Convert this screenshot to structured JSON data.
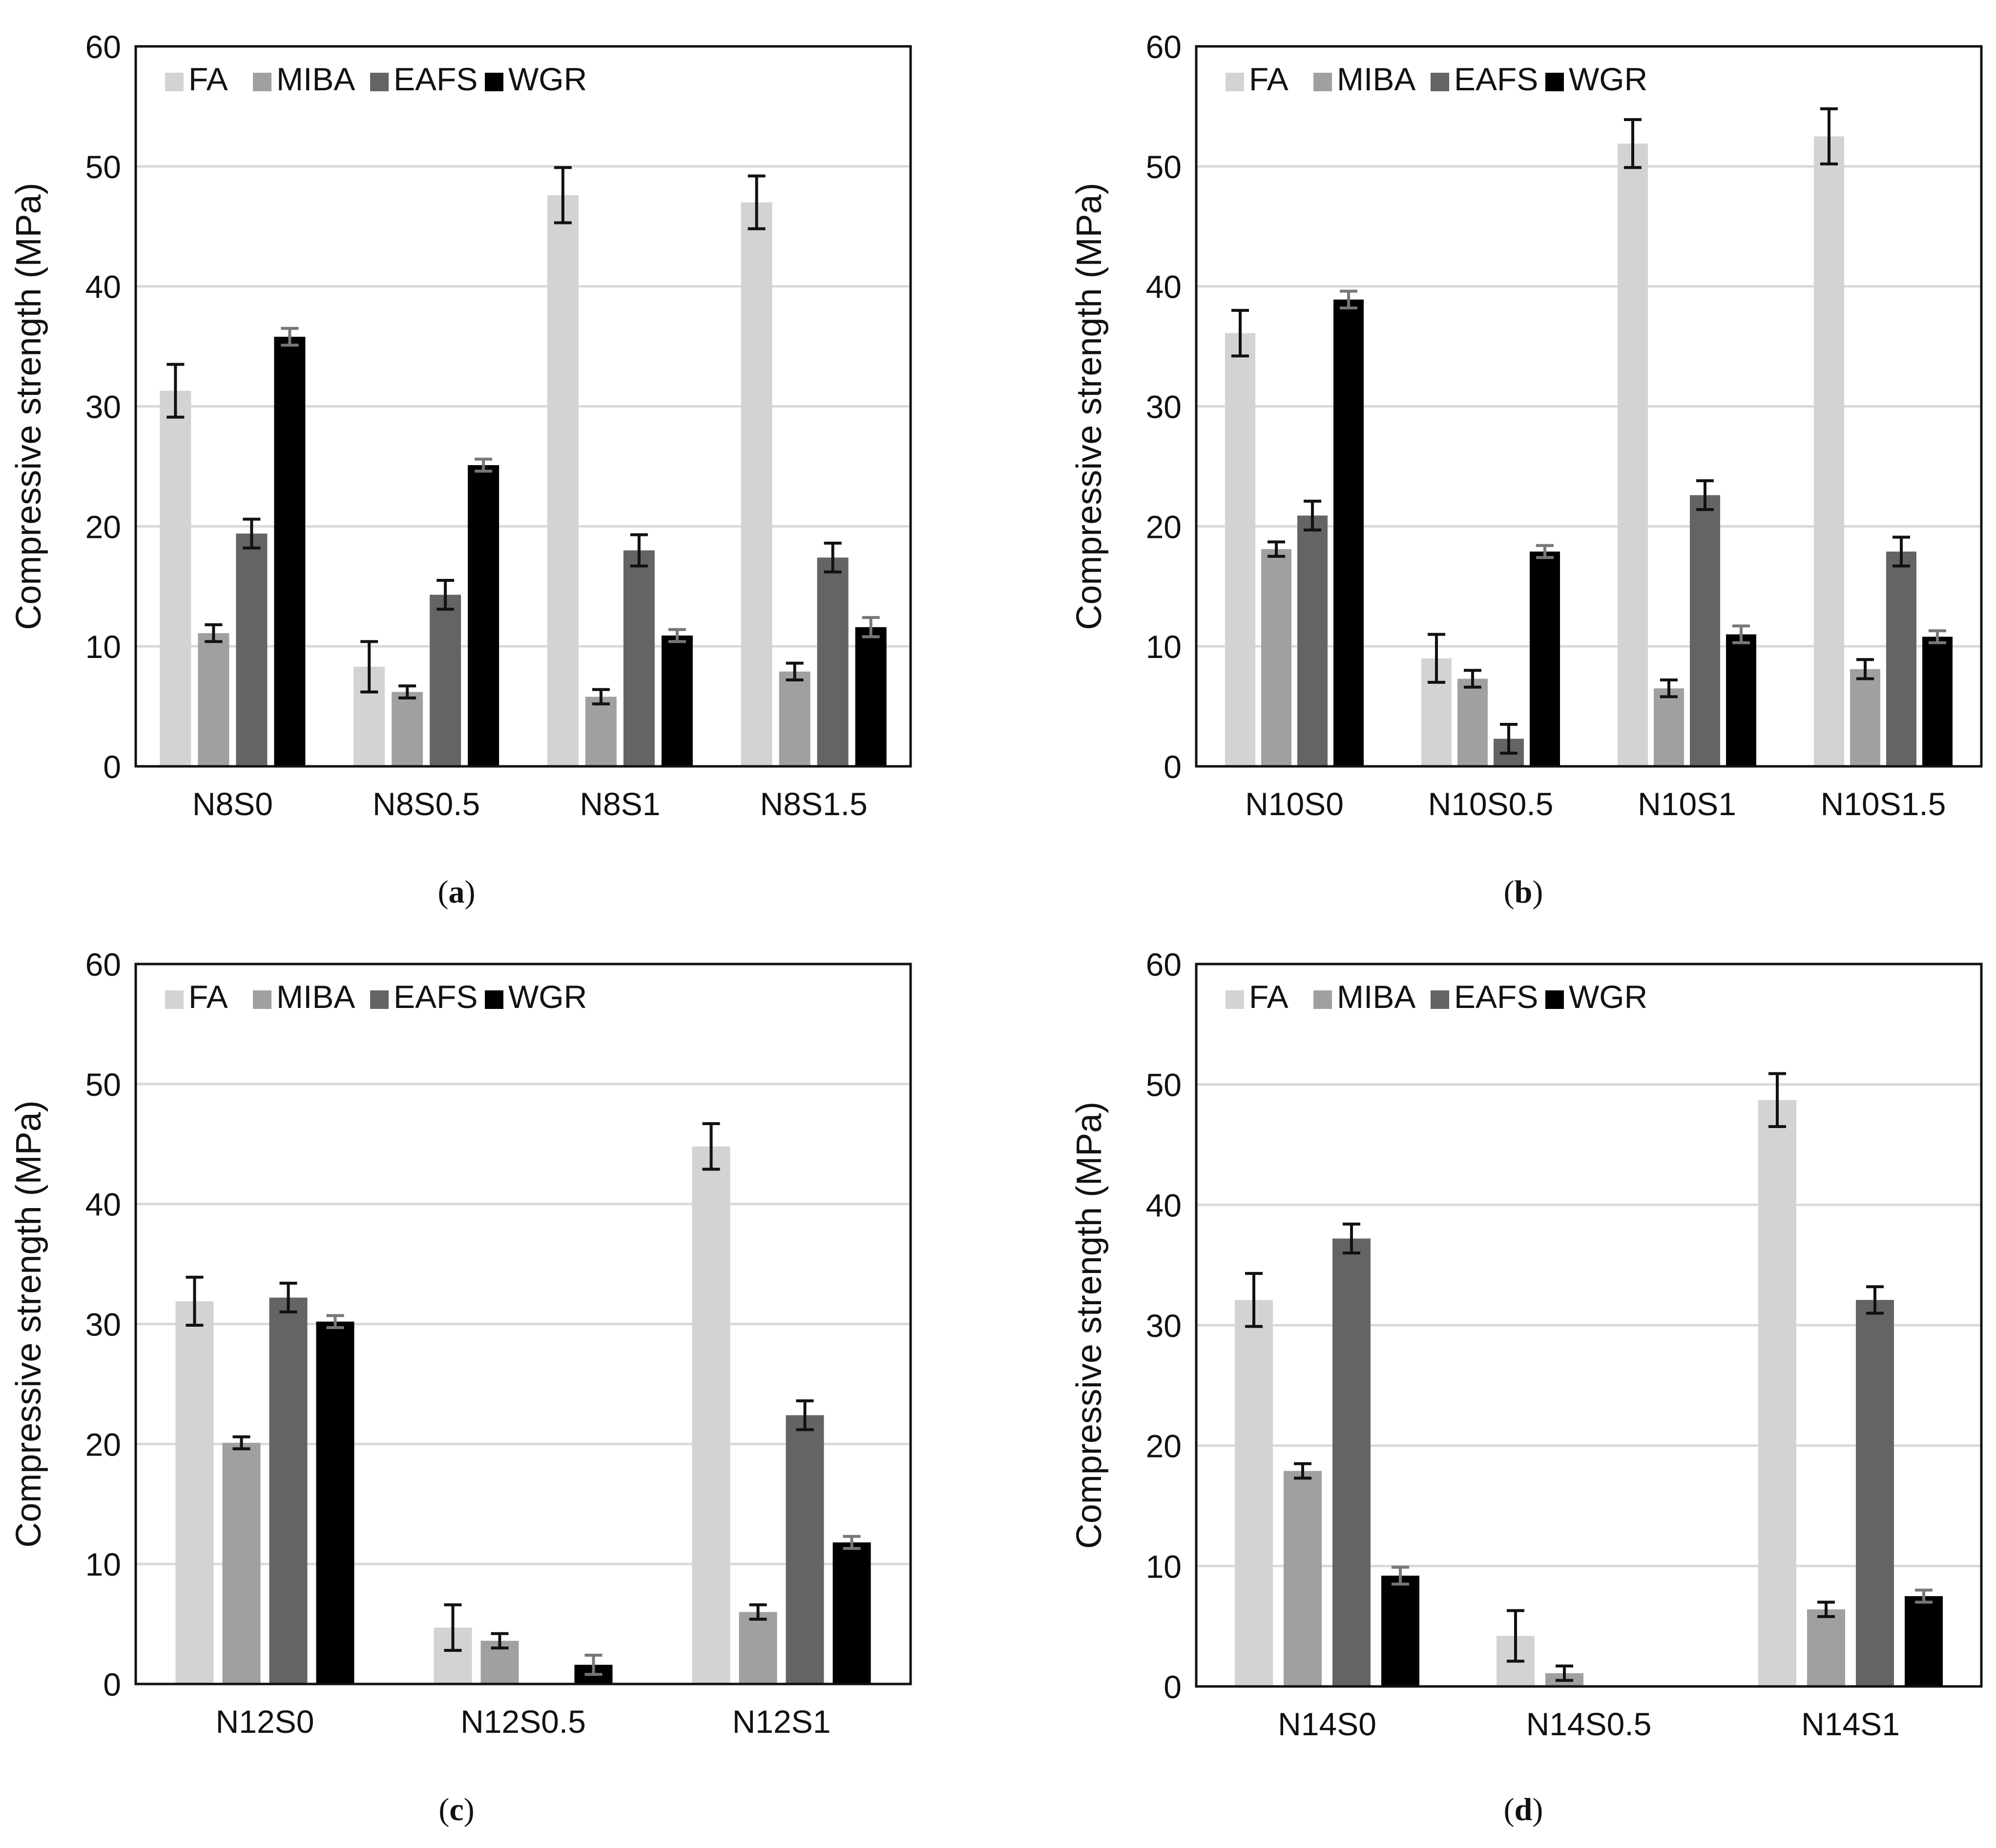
{
  "colors": {
    "FA": "#d3d3d3",
    "MIBA": "#a0a0a0",
    "EAFS": "#646464",
    "WGR": "#000000",
    "err_light": "#777777",
    "err_dark": "#111111",
    "grid": "#d9d9d9"
  },
  "chart_data": [
    {
      "type": "bar",
      "panel_label": "a",
      "panel_open": "(",
      "panel_close": ")",
      "ylabel": "Compressive strength (MPa)",
      "ylim": [
        0,
        60
      ],
      "yticks": [
        0,
        10,
        20,
        30,
        40,
        50,
        60
      ],
      "legend": [
        "FA",
        "MIBA",
        "EAFS",
        "WGR"
      ],
      "legend_position": "top-left",
      "categories": [
        "N8S0",
        "N8S0.5",
        "N8S1",
        "N8S1.5"
      ],
      "series": [
        {
          "name": "FA",
          "values": [
            31.3,
            8.3,
            47.6,
            47.0
          ],
          "errors": [
            2.2,
            2.1,
            2.3,
            2.2
          ]
        },
        {
          "name": "MIBA",
          "values": [
            11.1,
            6.2,
            5.8,
            7.9
          ],
          "errors": [
            0.7,
            0.5,
            0.6,
            0.7
          ]
        },
        {
          "name": "EAFS",
          "values": [
            19.4,
            14.3,
            18.0,
            17.4
          ],
          "errors": [
            1.2,
            1.2,
            1.3,
            1.2
          ]
        },
        {
          "name": "WGR",
          "values": [
            35.8,
            25.1,
            10.9,
            11.6
          ],
          "errors": [
            0.7,
            0.5,
            0.5,
            0.8
          ]
        }
      ]
    },
    {
      "type": "bar",
      "panel_label": "b",
      "panel_open": "(",
      "panel_close": ")",
      "ylabel": "Compressive strength (MPa)",
      "ylim": [
        0,
        60
      ],
      "yticks": [
        0,
        10,
        20,
        30,
        40,
        50,
        60
      ],
      "legend": [
        "FA",
        "MIBA",
        "EAFS",
        "WGR"
      ],
      "legend_position": "top-left",
      "categories": [
        "N10S0",
        "N10S0.5",
        "N10S1",
        "N10S1.5"
      ],
      "series": [
        {
          "name": "FA",
          "values": [
            36.1,
            9.0,
            51.9,
            52.5
          ],
          "errors": [
            1.9,
            2.0,
            2.0,
            2.3
          ]
        },
        {
          "name": "MIBA",
          "values": [
            18.1,
            7.3,
            6.5,
            8.1
          ],
          "errors": [
            0.6,
            0.7,
            0.7,
            0.8
          ]
        },
        {
          "name": "EAFS",
          "values": [
            20.9,
            2.3,
            22.6,
            17.9
          ],
          "errors": [
            1.2,
            1.2,
            1.2,
            1.2
          ]
        },
        {
          "name": "WGR",
          "values": [
            38.9,
            17.9,
            11.0,
            10.8
          ],
          "errors": [
            0.7,
            0.5,
            0.7,
            0.5
          ]
        }
      ]
    },
    {
      "type": "bar",
      "panel_label": "c",
      "panel_open": "(",
      "panel_close": ")",
      "ylabel": "Compressive strength (MPa)",
      "ylim": [
        0,
        60
      ],
      "yticks": [
        0,
        10,
        20,
        30,
        40,
        50,
        60
      ],
      "legend": [
        "FA",
        "MIBA",
        "EAFS",
        "WGR"
      ],
      "legend_position": "top-left",
      "categories": [
        "N12S0",
        "N12S0.5",
        "N12S1"
      ],
      "series": [
        {
          "name": "FA",
          "values": [
            31.9,
            4.7,
            44.8
          ],
          "errors": [
            2.0,
            1.9,
            1.9
          ]
        },
        {
          "name": "MIBA",
          "values": [
            20.1,
            3.6,
            6.0
          ],
          "errors": [
            0.5,
            0.6,
            0.6
          ]
        },
        {
          "name": "EAFS",
          "values": [
            32.2,
            0,
            22.4
          ],
          "errors": [
            1.2,
            0,
            1.2
          ]
        },
        {
          "name": "WGR",
          "values": [
            30.2,
            1.6,
            11.8
          ],
          "errors": [
            0.5,
            0.8,
            0.5
          ]
        }
      ]
    },
    {
      "type": "bar",
      "panel_label": "d",
      "panel_open": "(",
      "panel_close": ")",
      "ylabel": "Compressive strength (MPa)",
      "ylim": [
        0,
        60
      ],
      "yticks": [
        0,
        10,
        20,
        30,
        40,
        50,
        60
      ],
      "legend": [
        "FA",
        "MIBA",
        "EAFS",
        "WGR"
      ],
      "legend_position": "top-left",
      "categories": [
        "N14S0",
        "N14S0.5",
        "N14S1"
      ],
      "series": [
        {
          "name": "FA",
          "values": [
            32.1,
            4.2,
            48.7
          ],
          "errors": [
            2.2,
            2.1,
            2.2
          ]
        },
        {
          "name": "MIBA",
          "values": [
            17.9,
            1.1,
            6.4
          ],
          "errors": [
            0.6,
            0.6,
            0.6
          ]
        },
        {
          "name": "EAFS",
          "values": [
            37.2,
            0,
            32.1
          ],
          "errors": [
            1.2,
            0,
            1.1
          ]
        },
        {
          "name": "WGR",
          "values": [
            9.2,
            0,
            7.5
          ],
          "errors": [
            0.7,
            0,
            0.5
          ]
        }
      ]
    }
  ]
}
